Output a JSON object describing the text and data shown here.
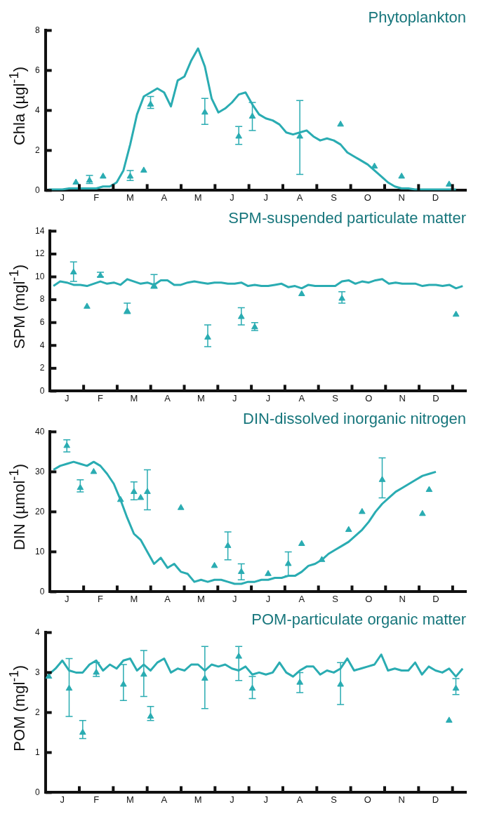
{
  "chart_data": [
    {
      "type": "line",
      "title": "Phytoplankton",
      "ylabel": "Chla (µgl$^{-1}$)",
      "ylim": [
        0,
        8
      ],
      "yticks": [
        0,
        2,
        4,
        6,
        8
      ],
      "categories": [
        null,
        null,
        "J",
        null,
        null,
        null,
        null,
        "F",
        null,
        null,
        null,
        null,
        "M",
        null,
        null,
        null,
        null,
        "A",
        null,
        null,
        null,
        null,
        "M",
        null,
        null,
        null,
        null,
        "J",
        null,
        null,
        null,
        null,
        "J",
        null,
        null,
        null,
        null,
        "A",
        null,
        null,
        null,
        null,
        "S",
        null,
        null,
        null,
        null,
        "O",
        null,
        null,
        null,
        null,
        "N",
        null,
        null,
        null,
        null,
        "D",
        null,
        null,
        null,
        null
      ],
      "series": [
        {
          "type": "line",
          "marker": "none",
          "color": "#2aacb2",
          "values": [
            0.05,
            0.05,
            0.05,
            0.1,
            0.1,
            0.1,
            0.1,
            0.1,
            0.2,
            0.2,
            0.4,
            1.0,
            2.3,
            3.8,
            4.7,
            4.9,
            5.1,
            4.9,
            4.2,
            5.5,
            5.7,
            6.5,
            7.1,
            6.2,
            4.6,
            3.9,
            4.1,
            4.4,
            4.8,
            4.9,
            4.3,
            3.8,
            3.6,
            3.5,
            3.3,
            2.9,
            2.8,
            2.9,
            3.0,
            2.7,
            2.5,
            2.6,
            2.5,
            2.3,
            1.9,
            1.7,
            1.5,
            1.3,
            1.0,
            0.7,
            0.4,
            0.2,
            0.1,
            0.1,
            0.05,
            0.05,
            0.05,
            0.05,
            0.05,
            0.05,
            0.05,
            null
          ]
        },
        {
          "type": "scatter",
          "marker": "triangle",
          "color": "#2aacb2",
          "values": [
            null,
            null,
            null,
            null,
            0.4,
            null,
            0.5,
            null,
            0.7,
            null,
            null,
            null,
            0.7,
            null,
            1.0,
            4.3,
            null,
            null,
            null,
            null,
            null,
            null,
            null,
            3.9,
            null,
            null,
            null,
            null,
            2.7,
            null,
            3.7,
            null,
            null,
            null,
            null,
            null,
            null,
            2.7,
            null,
            null,
            null,
            null,
            null,
            3.3,
            null,
            null,
            null,
            null,
            1.2,
            null,
            null,
            null,
            0.7,
            null,
            null,
            null,
            null,
            null,
            null,
            0.3,
            null,
            null
          ],
          "errors": [
            null,
            null,
            null,
            null,
            null,
            null,
            [
              0.35,
              0.75
            ],
            null,
            null,
            null,
            null,
            null,
            [
              0.5,
              1.0
            ],
            null,
            null,
            [
              4.1,
              4.7
            ],
            null,
            null,
            null,
            null,
            null,
            null,
            null,
            [
              3.3,
              4.6
            ],
            null,
            null,
            null,
            null,
            [
              2.3,
              3.2
            ],
            null,
            [
              3.0,
              4.4
            ],
            null,
            null,
            null,
            null,
            null,
            null,
            [
              0.8,
              4.5
            ],
            null,
            null,
            null,
            null,
            null,
            null,
            null,
            null,
            null,
            null,
            null,
            null,
            null,
            null,
            null,
            null,
            null,
            null,
            null,
            null,
            null,
            null,
            null,
            null
          ]
        }
      ]
    },
    {
      "type": "line",
      "title": "SPM-suspended particulate matter",
      "ylabel": "SPM (mgl$^{-1}$)",
      "ylim": [
        0,
        14
      ],
      "yticks": [
        0,
        2,
        4,
        6,
        8,
        10,
        12,
        14
      ],
      "categories": [
        null,
        null,
        "J",
        null,
        null,
        null,
        null,
        "F",
        null,
        null,
        null,
        null,
        "M",
        null,
        null,
        null,
        null,
        "A",
        null,
        null,
        null,
        null,
        "M",
        null,
        null,
        null,
        null,
        "J",
        null,
        null,
        null,
        null,
        "J",
        null,
        null,
        null,
        null,
        "A",
        null,
        null,
        null,
        null,
        "S",
        null,
        null,
        null,
        null,
        "O",
        null,
        null,
        null,
        null,
        "N",
        null,
        null,
        null,
        null,
        "D",
        null,
        null,
        null,
        null
      ],
      "series": [
        {
          "type": "line",
          "marker": "none",
          "color": "#2aacb2",
          "values": [
            9.2,
            9.6,
            9.5,
            9.3,
            9.3,
            9.2,
            9.4,
            9.6,
            9.4,
            9.5,
            9.3,
            9.8,
            9.6,
            9.4,
            9.5,
            9.3,
            9.7,
            9.7,
            9.3,
            9.3,
            9.5,
            9.6,
            9.5,
            9.4,
            9.5,
            9.5,
            9.4,
            9.4,
            9.5,
            9.2,
            9.3,
            9.2,
            9.2,
            9.3,
            9.4,
            9.1,
            9.2,
            9.0,
            9.3,
            9.2,
            9.2,
            9.2,
            9.2,
            9.6,
            9.7,
            9.4,
            9.6,
            9.5,
            9.7,
            9.8,
            9.4,
            9.5,
            9.4,
            9.4,
            9.4,
            9.2,
            9.3,
            9.3,
            9.2,
            9.3,
            9.0,
            9.2
          ]
        },
        {
          "type": "scatter",
          "marker": "triangle",
          "color": "#2aacb2",
          "values": [
            null,
            null,
            null,
            10.4,
            null,
            7.4,
            null,
            10.1,
            null,
            null,
            null,
            7.0,
            null,
            null,
            null,
            9.2,
            null,
            null,
            null,
            null,
            null,
            null,
            null,
            4.7,
            null,
            null,
            null,
            null,
            6.5,
            null,
            5.6,
            null,
            null,
            null,
            null,
            null,
            null,
            8.5,
            null,
            null,
            null,
            null,
            null,
            8.1,
            null,
            null,
            null,
            null,
            null,
            null,
            null,
            null,
            null,
            null,
            null,
            null,
            null,
            null,
            null,
            null,
            6.7,
            null
          ],
          "errors": [
            null,
            null,
            null,
            [
              9.6,
              11.3
            ],
            null,
            null,
            null,
            [
              10.0,
              10.4
            ],
            null,
            null,
            null,
            [
              6.8,
              7.7
            ],
            null,
            null,
            null,
            [
              9.0,
              10.2
            ],
            null,
            null,
            null,
            null,
            null,
            null,
            null,
            [
              3.9,
              5.8
            ],
            null,
            null,
            null,
            null,
            [
              5.8,
              7.3
            ],
            null,
            [
              5.3,
              6.0
            ],
            null,
            null,
            null,
            null,
            null,
            null,
            null,
            null,
            null,
            null,
            null,
            null,
            [
              7.7,
              8.7
            ],
            null,
            null,
            null,
            null,
            null,
            null,
            null,
            null,
            null,
            null,
            null,
            null,
            null,
            null,
            null,
            null,
            null,
            null
          ]
        }
      ]
    },
    {
      "type": "line",
      "title": "DIN-dissolved inorganic nitrogen",
      "ylabel": "DIN (µmol$^{-1}$)",
      "ylim": [
        0,
        40
      ],
      "yticks": [
        0,
        10,
        20,
        30,
        40
      ],
      "categories": [
        null,
        null,
        "J",
        null,
        null,
        null,
        null,
        "F",
        null,
        null,
        null,
        null,
        "M",
        null,
        null,
        null,
        null,
        "A",
        null,
        null,
        null,
        null,
        "M",
        null,
        null,
        null,
        null,
        "J",
        null,
        null,
        null,
        null,
        "J",
        null,
        null,
        null,
        null,
        "A",
        null,
        null,
        null,
        null,
        "S",
        null,
        null,
        null,
        null,
        "O",
        null,
        null,
        null,
        null,
        "N",
        null,
        null,
        null,
        null,
        "D",
        null,
        null,
        null,
        null
      ],
      "series": [
        {
          "type": "line",
          "marker": "none",
          "color": "#2aacb2",
          "values": [
            30.5,
            31.5,
            32,
            32.5,
            32,
            31.5,
            32.5,
            31.5,
            29.5,
            27,
            23,
            18.5,
            14.5,
            13,
            10,
            7,
            8.5,
            6,
            7,
            5,
            4.5,
            2.5,
            3,
            2.5,
            3,
            3,
            2.5,
            2,
            2,
            2.5,
            2.5,
            3,
            3,
            3.5,
            3.5,
            4,
            4,
            5,
            6.5,
            7,
            8,
            9.5,
            10.5,
            11.5,
            12.5,
            14,
            15.5,
            17.5,
            20,
            22,
            23.5,
            25,
            26,
            27,
            28,
            29,
            29.5,
            30,
            null,
            null,
            null,
            null
          ]
        },
        {
          "type": "scatter",
          "marker": "triangle",
          "color": "#2aacb2",
          "values": [
            null,
            null,
            36.5,
            null,
            26,
            null,
            30,
            null,
            null,
            null,
            23,
            null,
            25,
            23.5,
            25,
            null,
            null,
            null,
            null,
            21,
            null,
            null,
            null,
            null,
            6.5,
            null,
            11.5,
            null,
            5,
            null,
            null,
            null,
            4.5,
            null,
            null,
            7,
            null,
            12,
            null,
            null,
            8,
            null,
            null,
            null,
            15.5,
            null,
            20,
            null,
            null,
            28,
            null,
            null,
            null,
            null,
            null,
            19.5,
            25.5,
            null,
            null,
            null,
            null,
            null
          ],
          "errors": [
            null,
            null,
            [
              35,
              38
            ],
            null,
            [
              25,
              28
            ],
            null,
            null,
            null,
            null,
            null,
            null,
            null,
            [
              23,
              27.5
            ],
            null,
            [
              20.5,
              30.5
            ],
            null,
            null,
            null,
            null,
            null,
            null,
            null,
            null,
            null,
            null,
            null,
            [
              8,
              15
            ],
            null,
            [
              3,
              7
            ],
            null,
            null,
            null,
            null,
            null,
            null,
            [
              4,
              10
            ],
            null,
            null,
            null,
            null,
            null,
            null,
            null,
            null,
            null,
            null,
            null,
            null,
            null,
            [
              23.5,
              33.5
            ],
            null,
            null,
            null,
            null,
            null,
            null,
            null,
            null,
            null,
            null,
            null,
            null
          ]
        }
      ]
    },
    {
      "type": "line",
      "title": "POM-particulate organic matter",
      "ylabel": "POM (mgl$^{-1}$)",
      "ylim": [
        0,
        4
      ],
      "yticks": [
        0,
        1,
        2,
        3,
        4
      ],
      "categories": [
        null,
        null,
        "J",
        null,
        null,
        null,
        null,
        "F",
        null,
        null,
        null,
        null,
        "M",
        null,
        null,
        null,
        null,
        "A",
        null,
        null,
        null,
        null,
        "M",
        null,
        null,
        null,
        null,
        "J",
        null,
        null,
        null,
        null,
        "J",
        null,
        null,
        null,
        null,
        "A",
        null,
        null,
        null,
        null,
        "S",
        null,
        null,
        null,
        null,
        "O",
        null,
        null,
        null,
        null,
        "N",
        null,
        null,
        null,
        null,
        "D",
        null,
        null,
        null,
        null
      ],
      "series": [
        {
          "type": "line",
          "marker": "none",
          "color": "#2aacb2",
          "values": [
            2.95,
            3.1,
            3.3,
            3.05,
            3.0,
            3.0,
            3.2,
            3.3,
            3.05,
            3.2,
            3.1,
            3.3,
            3.35,
            3.05,
            3.2,
            3.05,
            3.25,
            3.35,
            3.0,
            3.1,
            3.05,
            3.2,
            3.2,
            3.05,
            3.2,
            3.15,
            3.2,
            3.1,
            3.05,
            3.15,
            2.95,
            3.0,
            2.95,
            3.0,
            3.25,
            3.0,
            2.9,
            3.05,
            3.15,
            3.15,
            2.95,
            3.05,
            3.0,
            3.1,
            3.35,
            3.05,
            3.1,
            3.15,
            3.2,
            3.45,
            3.05,
            3.1,
            3.05,
            3.05,
            3.25,
            2.95,
            3.15,
            3.05,
            3.0,
            3.1,
            2.9,
            3.1
          ]
        },
        {
          "type": "scatter",
          "marker": "triangle",
          "color": "#2aacb2",
          "values": [
            2.9,
            null,
            null,
            2.6,
            null,
            1.5,
            null,
            3.0,
            null,
            null,
            null,
            2.7,
            null,
            null,
            2.95,
            1.9,
            null,
            null,
            null,
            null,
            null,
            null,
            null,
            2.85,
            null,
            null,
            null,
            null,
            3.4,
            null,
            2.6,
            null,
            null,
            null,
            null,
            null,
            null,
            2.75,
            null,
            null,
            null,
            null,
            null,
            2.7,
            null,
            null,
            null,
            null,
            null,
            null,
            null,
            null,
            null,
            null,
            null,
            null,
            null,
            null,
            null,
            1.8,
            2.6,
            null
          ],
          "errors": [
            null,
            null,
            null,
            [
              1.9,
              3.35
            ],
            null,
            [
              1.35,
              1.8
            ],
            null,
            [
              2.9,
              3.25
            ],
            null,
            null,
            null,
            [
              2.3,
              3.2
            ],
            null,
            null,
            [
              2.4,
              3.55
            ],
            [
              1.8,
              2.15
            ],
            null,
            null,
            null,
            null,
            null,
            null,
            null,
            [
              2.1,
              3.65
            ],
            null,
            null,
            null,
            null,
            [
              2.8,
              3.65
            ],
            null,
            [
              2.35,
              2.9
            ],
            null,
            null,
            null,
            null,
            null,
            null,
            [
              2.5,
              3.0
            ],
            null,
            null,
            null,
            null,
            null,
            [
              2.2,
              3.25
            ],
            null,
            null,
            null,
            null,
            null,
            null,
            null,
            null,
            null,
            null,
            null,
            null,
            null,
            null,
            null,
            null,
            [
              2.45,
              2.85
            ],
            null
          ]
        }
      ]
    }
  ]
}
